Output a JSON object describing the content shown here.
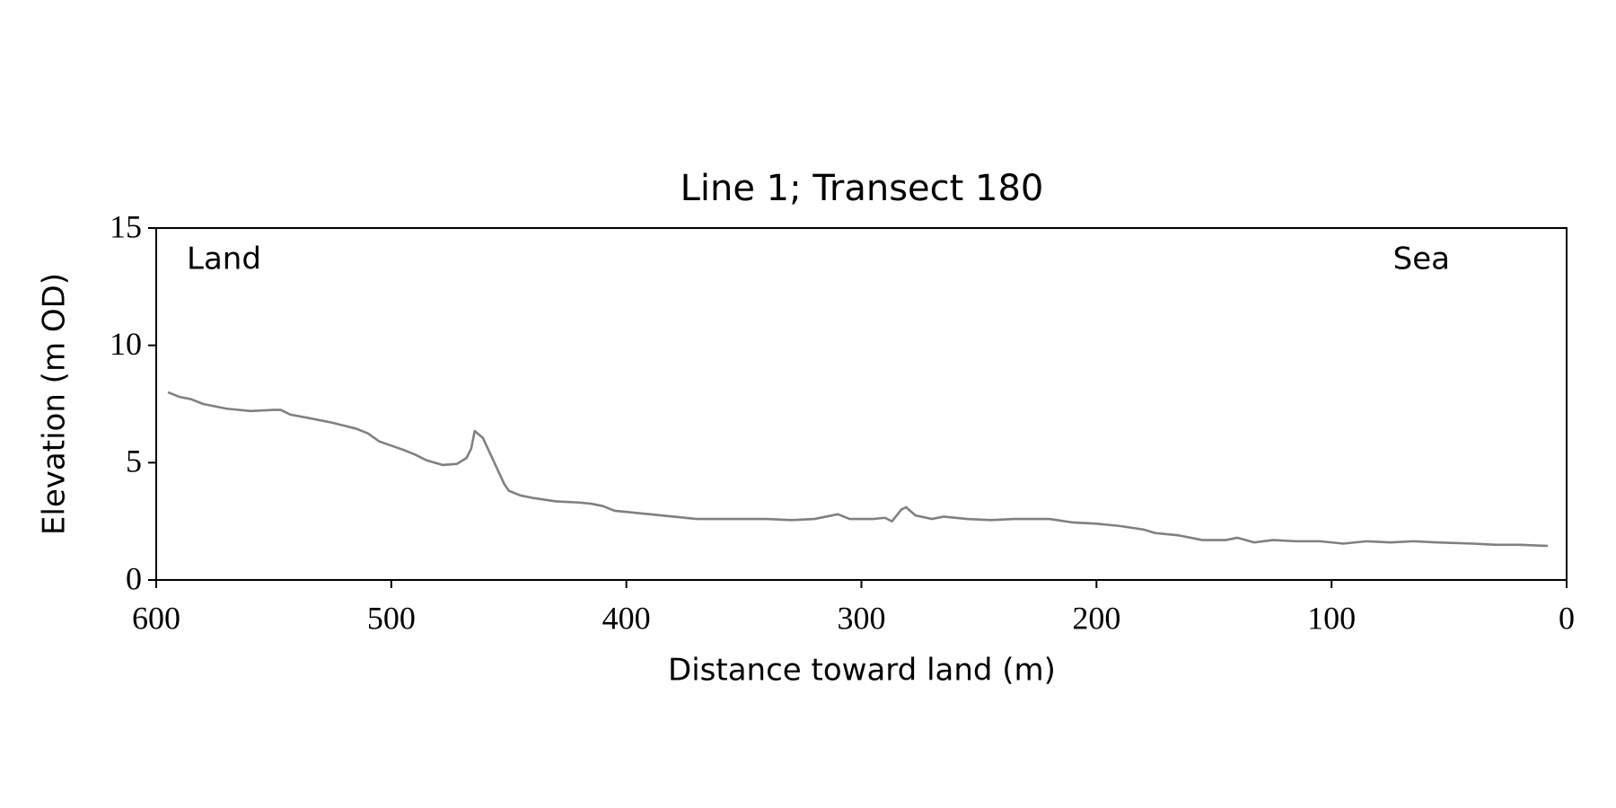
{
  "chart_data": {
    "type": "line",
    "title": "Line 1; Transect 180",
    "x_label": "Distance toward land (m)",
    "y_label": "Elevation (m OD)",
    "annotations": [
      "Land",
      "Sea"
    ],
    "xlim": [
      600,
      0
    ],
    "xticks": [
      600,
      500,
      400,
      300,
      200,
      100,
      0
    ],
    "ylim": [
      0,
      15
    ],
    "yticks": [
      0,
      5,
      10,
      15
    ],
    "x": [
      595,
      590,
      585,
      580,
      570,
      560,
      550,
      547,
      543,
      535,
      525,
      515,
      510,
      505,
      495,
      490,
      485,
      478,
      472,
      468,
      466,
      464.5,
      461,
      458,
      455,
      452,
      450,
      445,
      440,
      430,
      420,
      415,
      410,
      405,
      400,
      390,
      380,
      370,
      360,
      350,
      340,
      330,
      320,
      310,
      305,
      295,
      290,
      287,
      283,
      281,
      277,
      270,
      265,
      255,
      245,
      235,
      220,
      210,
      200,
      190,
      180,
      175,
      165,
      160,
      155,
      145,
      140,
      133,
      125,
      115,
      105,
      95,
      85,
      75,
      65,
      55,
      40,
      30,
      20,
      8
    ],
    "series": [
      {
        "name": "Elevation",
        "color": "#808080",
        "values": [
          8.0,
          7.8,
          7.7,
          7.5,
          7.3,
          7.2,
          7.25,
          7.25,
          7.05,
          6.9,
          6.7,
          6.45,
          6.25,
          5.9,
          5.55,
          5.35,
          5.1,
          4.9,
          4.95,
          5.2,
          5.6,
          6.35,
          6.05,
          5.4,
          4.75,
          4.1,
          3.8,
          3.6,
          3.5,
          3.35,
          3.3,
          3.25,
          3.15,
          2.95,
          2.9,
          2.8,
          2.7,
          2.6,
          2.6,
          2.6,
          2.6,
          2.55,
          2.6,
          2.8,
          2.6,
          2.6,
          2.65,
          2.5,
          3.0,
          3.1,
          2.75,
          2.6,
          2.7,
          2.6,
          2.55,
          2.6,
          2.6,
          2.45,
          2.4,
          2.3,
          2.15,
          2.0,
          1.9,
          1.8,
          1.7,
          1.7,
          1.8,
          1.6,
          1.7,
          1.65,
          1.65,
          1.55,
          1.65,
          1.6,
          1.65,
          1.6,
          1.55,
          1.5,
          1.5,
          1.45
        ]
      }
    ]
  }
}
